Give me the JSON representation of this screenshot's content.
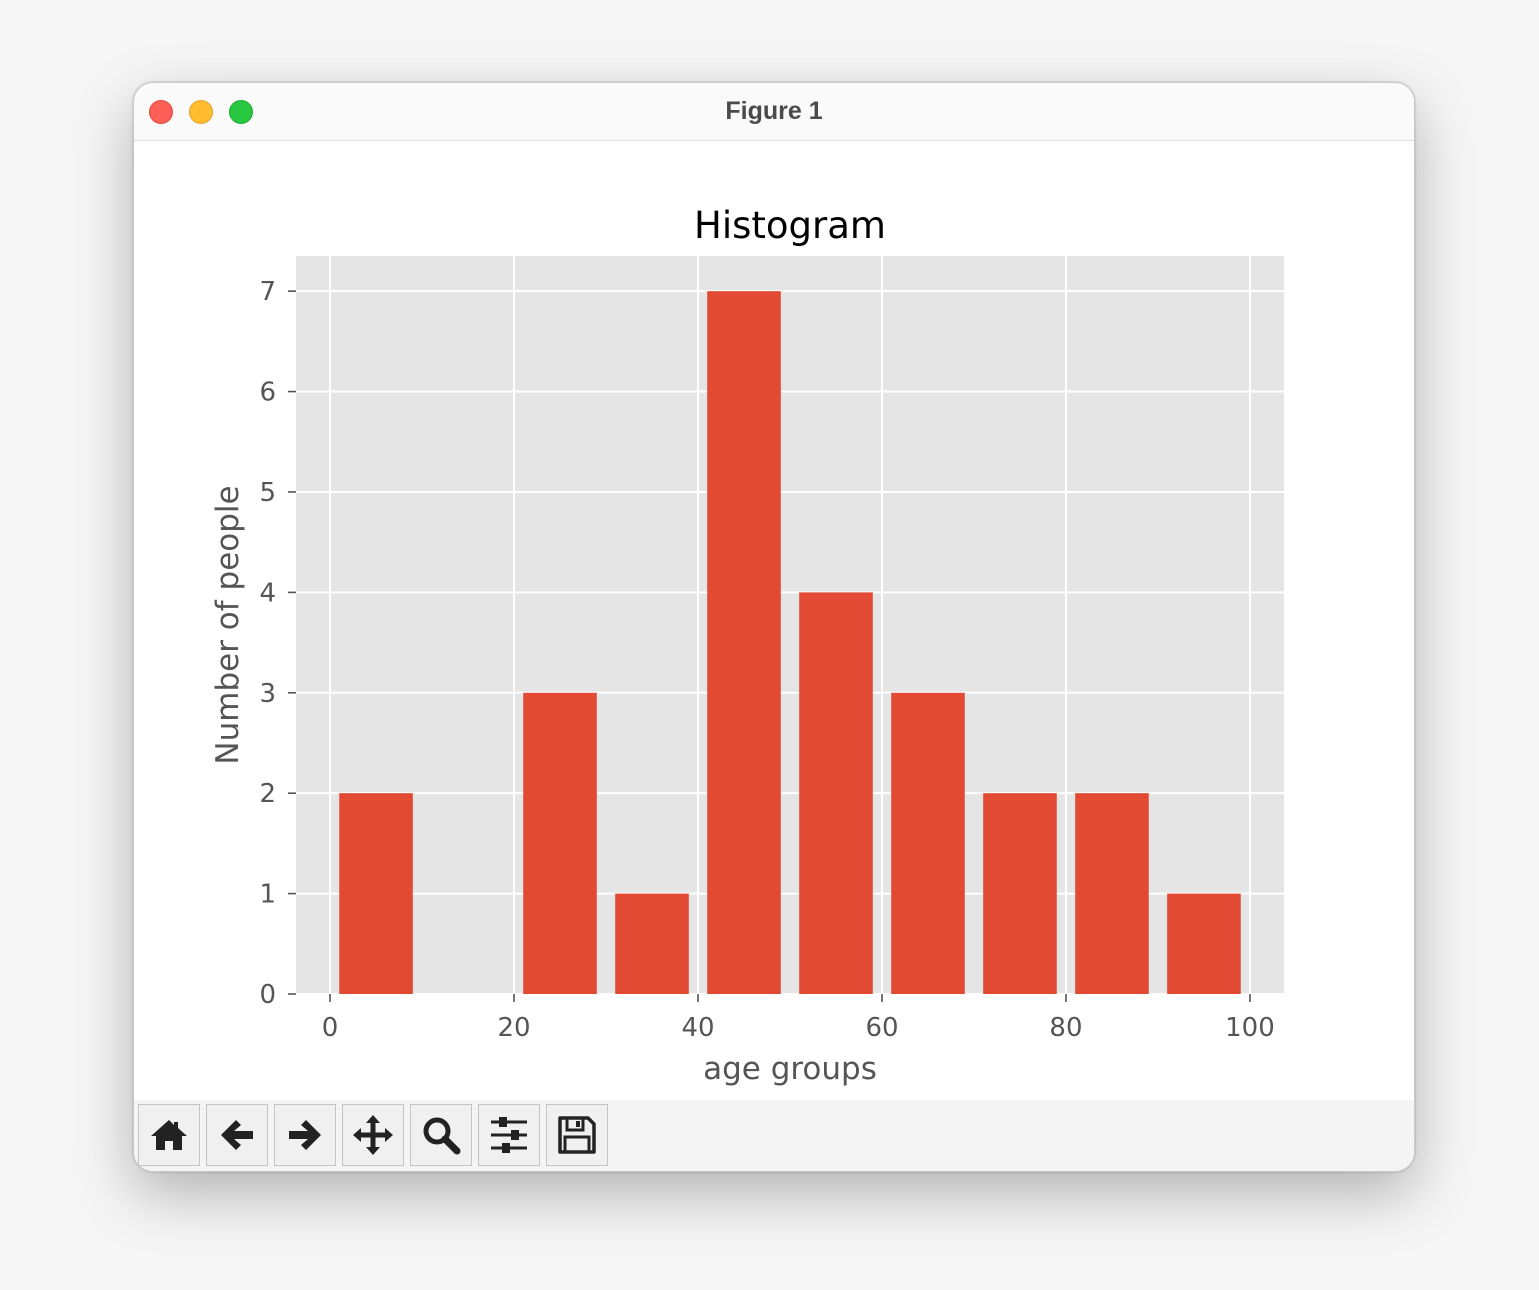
{
  "window": {
    "title": "Figure 1"
  },
  "toolbar": {
    "tools": [
      {
        "name": "home-icon"
      },
      {
        "name": "back-arrow-icon"
      },
      {
        "name": "forward-arrow-icon"
      },
      {
        "name": "pan-icon"
      },
      {
        "name": "zoom-icon"
      },
      {
        "name": "configure-subplots-icon"
      },
      {
        "name": "save-icon"
      }
    ]
  },
  "chart_data": {
    "type": "bar",
    "title": "Histogram",
    "xlabel": "age groups",
    "ylabel": "Number of people",
    "x": [
      5,
      15,
      25,
      35,
      45,
      55,
      65,
      75,
      85,
      95
    ],
    "values": [
      2,
      0,
      3,
      1,
      7,
      4,
      3,
      2,
      2,
      1
    ],
    "bar_width": 8,
    "xlim": [
      -3.7,
      103.7
    ],
    "ylim": [
      0,
      7.35
    ],
    "xticks": [
      0,
      20,
      40,
      60,
      80,
      100
    ],
    "yticks": [
      0,
      1,
      2,
      3,
      4,
      5,
      6,
      7
    ],
    "grid": true,
    "bar_color": "#e24a33",
    "background_color": "#e5e5e5",
    "grid_color": "#ffffff"
  }
}
